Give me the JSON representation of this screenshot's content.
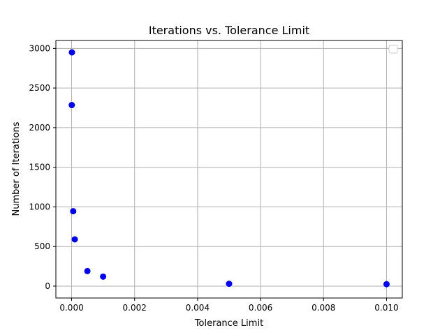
{
  "chart_data": {
    "type": "scatter",
    "title": "Iterations vs. Tolerance Limit",
    "xlabel": "Tolerance Limit",
    "ylabel": "Number of Iterations",
    "xlim": [
      -0.0005,
      0.0105
    ],
    "ylim": [
      -150,
      3100
    ],
    "xticks": [
      0.0,
      0.002,
      0.004,
      0.006,
      0.008,
      0.01
    ],
    "xtick_labels": [
      "0.000",
      "0.002",
      "0.004",
      "0.006",
      "0.008",
      "0.010"
    ],
    "yticks": [
      0,
      500,
      1000,
      1500,
      2000,
      2500,
      3000
    ],
    "ytick_labels": [
      "0",
      "500",
      "1000",
      "1500",
      "2000",
      "2500",
      "3000"
    ],
    "grid": true,
    "legend": "upper right (empty)",
    "marker_color": "#0000ff",
    "series": [
      {
        "x": [
          1e-05,
          5e-06,
          5e-05,
          0.0001,
          0.0005,
          0.001,
          0.005,
          0.01
        ],
        "y": [
          2950,
          2285,
          945,
          590,
          190,
          120,
          30,
          25
        ]
      }
    ]
  }
}
